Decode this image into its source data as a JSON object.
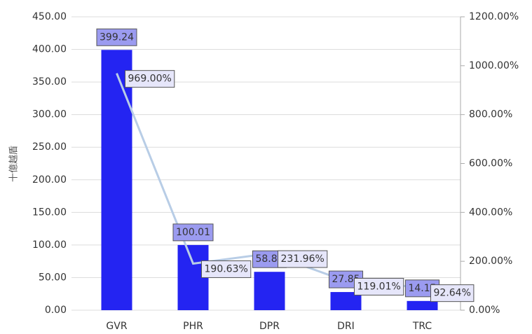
{
  "chart_data": {
    "type": "bar",
    "y_label": "十億越盾",
    "categories": [
      "GVR",
      "PHR",
      "DPR",
      "DRI",
      "TRC"
    ],
    "series": [
      {
        "type": "bar",
        "color": "#2424f2",
        "values": [
          399.24,
          100.01,
          58.85,
          27.85,
          14.15
        ],
        "value_labels": [
          "399.24",
          "100.01",
          "58.85",
          "27.85",
          "14.15"
        ]
      },
      {
        "type": "line",
        "axis": "y2",
        "color": "#b8cde6",
        "values": [
          969,
          190.63,
          231.96,
          119.01,
          92.64
        ],
        "value_labels": [
          "969.00%",
          "190.63%",
          "231.96%",
          "119.01%",
          "92.64%"
        ]
      }
    ],
    "ylim": [
      0,
      450
    ],
    "yticks": [
      {
        "value": 0,
        "label": "0.00"
      },
      {
        "value": 50,
        "label": "50.00"
      },
      {
        "value": 100,
        "label": "100.00"
      },
      {
        "value": 150,
        "label": "150.00"
      },
      {
        "value": 200,
        "label": "200.00"
      },
      {
        "value": 250,
        "label": "250.00"
      },
      {
        "value": 300,
        "label": "300.00"
      },
      {
        "value": 350,
        "label": "350.00"
      },
      {
        "value": 400,
        "label": "400.00"
      },
      {
        "value": 450,
        "label": "450.00"
      }
    ],
    "y2lim": [
      0,
      1200
    ],
    "y2ticks": [
      {
        "value": 0,
        "label": "0.00%"
      },
      {
        "value": 200,
        "label": "200.00%"
      },
      {
        "value": 400,
        "label": "400.00%"
      },
      {
        "value": 600,
        "label": "600.00%"
      },
      {
        "value": 800,
        "label": "800.00%"
      },
      {
        "value": 1000,
        "label": "1000.00%"
      },
      {
        "value": 1200,
        "label": "1200.00%"
      }
    ],
    "grid": true
  }
}
